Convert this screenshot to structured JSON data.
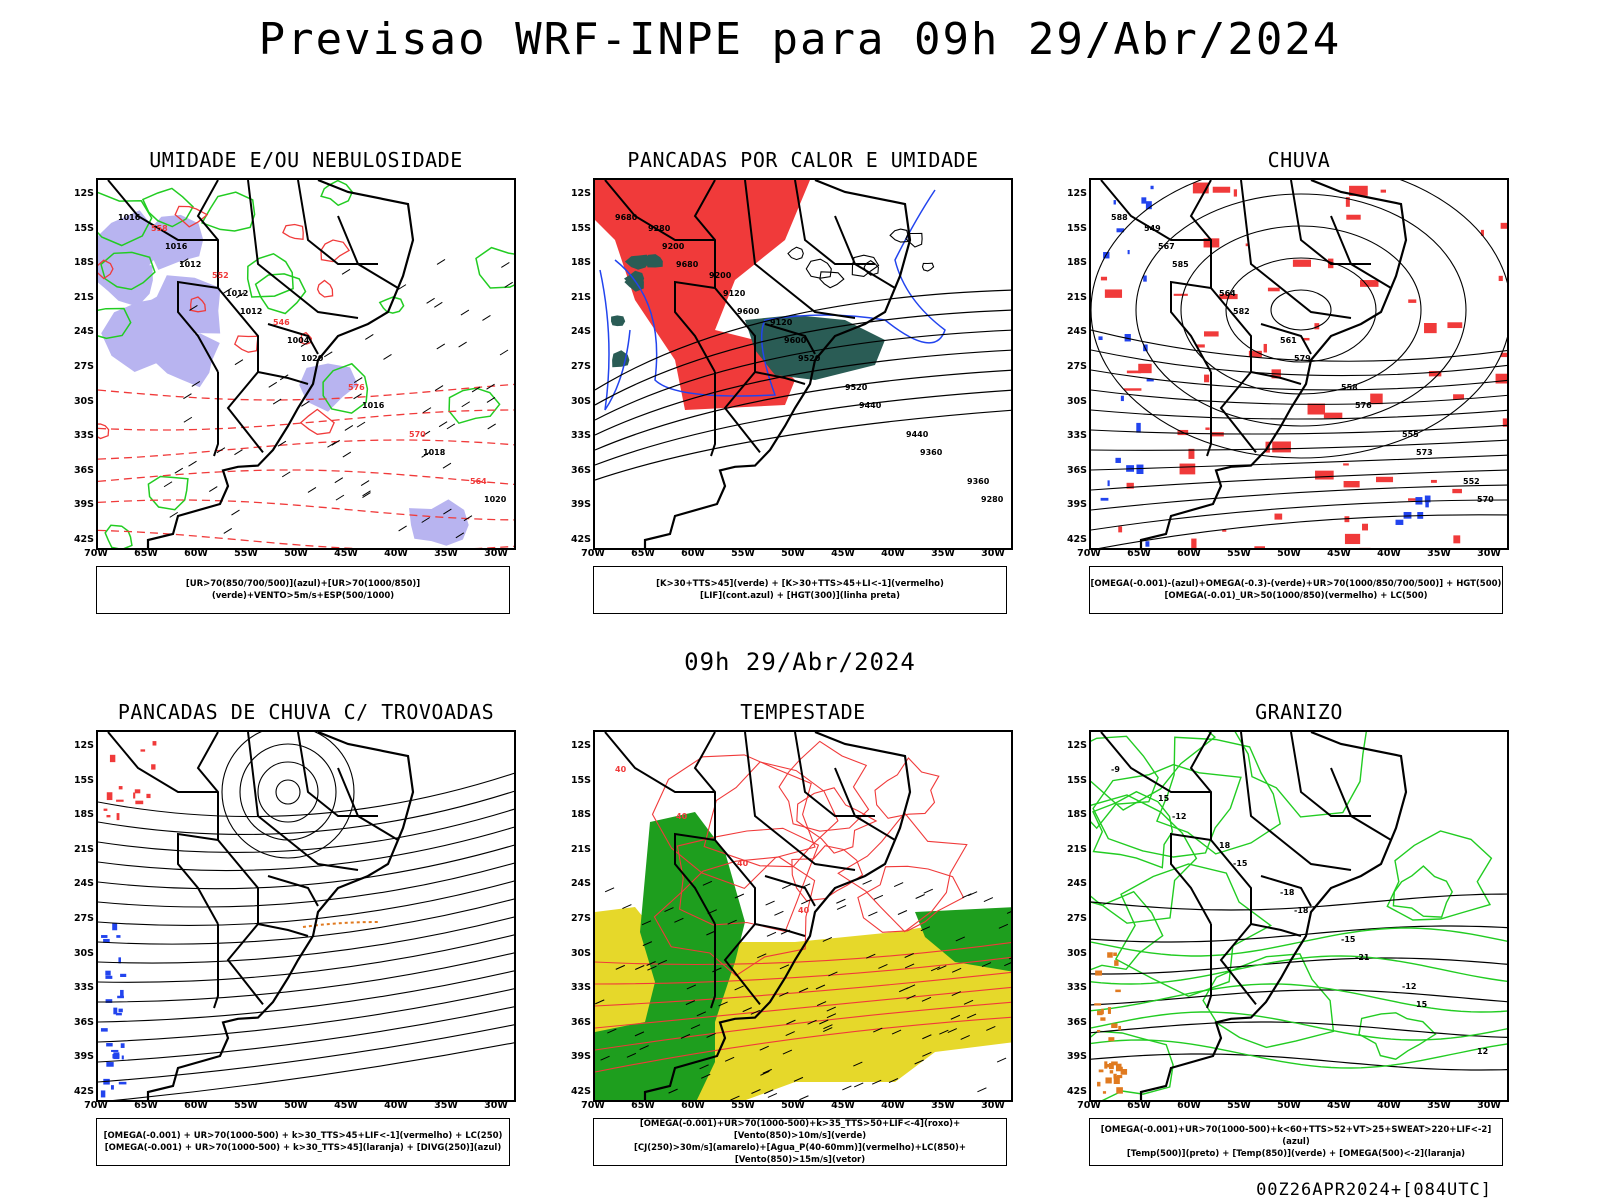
{
  "main_title": "Previsao WRF-INPE  para 09h 29/Abr/2024",
  "mid_title": "09h 29/Abr/2024",
  "footer": "00Z26APR2024+[084UTC]",
  "axes": {
    "lat_labels": [
      "12S",
      "15S",
      "18S",
      "21S",
      "24S",
      "27S",
      "30S",
      "33S",
      "36S",
      "39S",
      "42S"
    ],
    "lon_labels": [
      "70W",
      "65W",
      "60W",
      "55W",
      "50W",
      "45W",
      "40W",
      "35W",
      "30W"
    ]
  },
  "panels": [
    {
      "id": "umidade",
      "title": "UMIDADE E/OU NEBULOSIDADE",
      "legend": [
        "[UR>70(850/700/500)](azul)+[UR>70(1000/850)](verde)+VENTO>5m/s+ESP(500/1000)"
      ],
      "labels": [
        "1016",
        "1012",
        "1012",
        "1020",
        "1016",
        "1018",
        "1020",
        "1016",
        "1012",
        "1004",
        "576",
        "570",
        "564",
        "558",
        "552",
        "546"
      ]
    },
    {
      "id": "pancadas_calor",
      "title": "PANCADAS POR CALOR E UMIDADE",
      "legend": [
        "[K>30+TTS>45](verde) + [K>30+TTS>45+LI<-1](vermelho)",
        "[LIF](cont.azul) + [HGT(300)](linha preta)"
      ],
      "labels": [
        "9680",
        "9680",
        "9600",
        "9520",
        "9440",
        "9360",
        "9280",
        "9200",
        "9120",
        "9600",
        "9520",
        "9440",
        "9360",
        "9280",
        "9200",
        "9120"
      ]
    },
    {
      "id": "chuva",
      "title": "CHUVA",
      "legend": [
        "[OMEGA(-0.001)-(azul)+OMEGA(-0.3)-(verde)+UR>70(1000/850/700/500)] + HGT(500)",
        "[OMEGA(-0.01)_UR>50(1000/850)(vermelho) + LC(500)"
      ],
      "labels": [
        "588",
        "585",
        "582",
        "579",
        "576",
        "573",
        "570",
        "567",
        "564",
        "561",
        "558",
        "555",
        "552",
        "549"
      ]
    },
    {
      "id": "trovoadas",
      "title": "PANCADAS DE CHUVA C/ TROVOADAS",
      "legend": [
        "[OMEGA(-0.001) + UR>70(1000-500) + k>30_TTS>45+LIF<-1](vermelho) + LC(250)",
        "[OMEGA(-0.001) + UR>70(1000-500) + k>30_TTS>45](laranja) + [DIVG(250)](azul)"
      ],
      "labels": []
    },
    {
      "id": "tempestade",
      "title": "TEMPESTADE",
      "legend": [
        "[OMEGA(-0.001)+UR>70(1000-500)+k>35_TTS>50+LIF<-4](roxo)+[Vento(850)>10m/s](verde)",
        "[CJ(250)>30m/s](amarelo)+[Agua_P(40-60mm)](vermelho)+LC(850)+[Vento(850)>15m/s](vetor)"
      ],
      "labels": [
        "40",
        "40",
        "40",
        "40"
      ]
    },
    {
      "id": "granizo",
      "title": "GRANIZO",
      "legend": [
        "[OMEGA(-0.001)+UR>70(1000-500)+k<60+TTS>52+VT>25+SWEAT>220+LIF<-2](azul)",
        "[Temp(500)](preto) + [Temp(850)](verde) + [OMEGA(500)<-2](laranja)"
      ],
      "labels": [
        "-9",
        "-12",
        "-15",
        "-18",
        "-21",
        "15",
        "12",
        "15",
        "18",
        "-18",
        "-15",
        "-12"
      ]
    }
  ],
  "colors": {
    "red": "#f03a3a",
    "green": "#22cc22",
    "blue": "#2244ee",
    "lavender": "#b8b4f0",
    "teal": "#2a5c55",
    "yellow": "#e6d82a",
    "orange": "#e07a20",
    "darkgreen": "#1e9e1e"
  }
}
